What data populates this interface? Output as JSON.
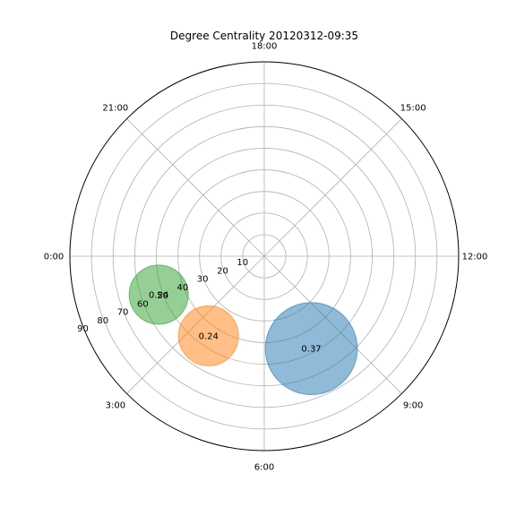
{
  "chart_data": {
    "type": "polar-bubble",
    "title": "Degree Centrality 20120312-09:35",
    "angular_ticks": [
      "0:00",
      "3:00",
      "6:00",
      "9:00",
      "12:00",
      "15:00",
      "18:00",
      "21:00"
    ],
    "radial_ticks": [
      10,
      20,
      30,
      40,
      50,
      60,
      70,
      80,
      90
    ],
    "rlim": [
      0,
      90
    ],
    "grid": true,
    "bubbles": [
      {
        "angle_deg": 297,
        "r": 48,
        "radius_r": 21.3,
        "value": "0.37",
        "color": "#1f77b4"
      },
      {
        "angle_deg": 235,
        "r": 45,
        "radius_r": 13.9,
        "value": "0.24",
        "color": "#ff7f0e"
      },
      {
        "angle_deg": 200,
        "r": 52,
        "radius_r": 13.7,
        "value": "0.24",
        "color": "#2ca02c"
      }
    ]
  }
}
